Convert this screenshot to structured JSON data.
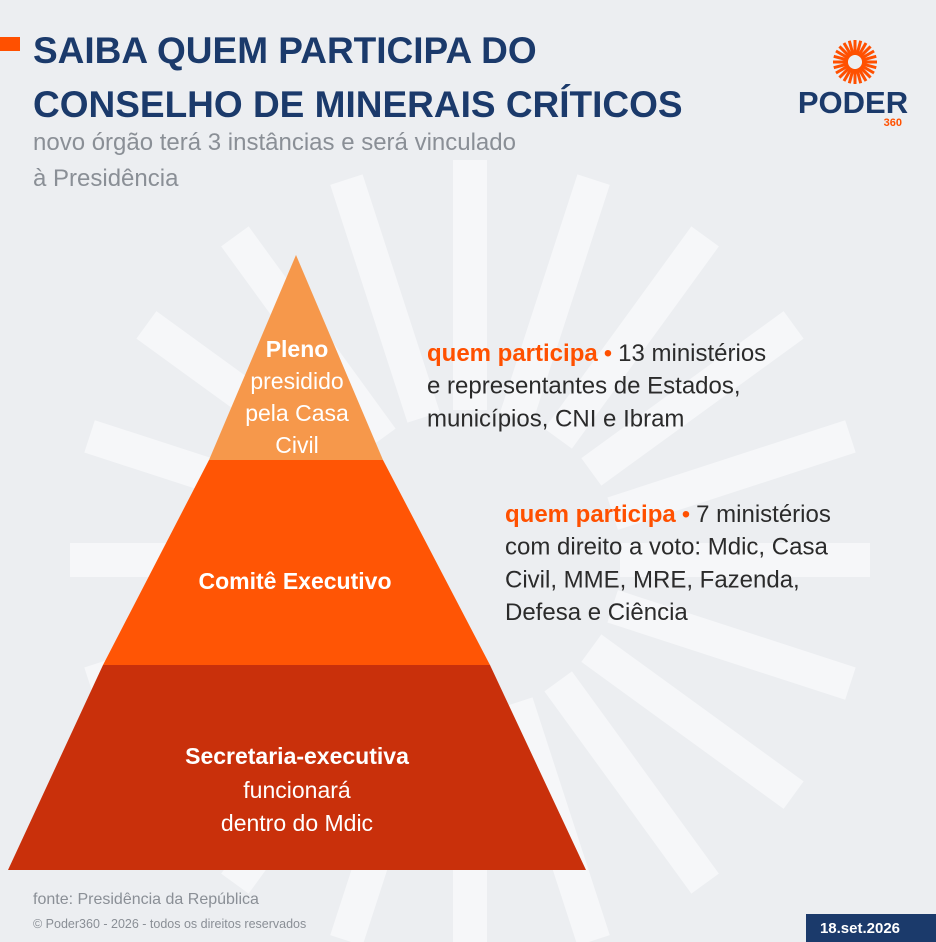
{
  "header": {
    "title_lines": [
      "SAIBA QUEM PARTICIPA DO",
      "CONSELHO DE MINERAIS CRÍTICOS"
    ],
    "subtitle_lines": [
      "novo órgão terá 3 instâncias e será vinculado",
      "à Presidência"
    ],
    "logo": {
      "name": "PODER",
      "number": "360"
    }
  },
  "pyramid": [
    {
      "title": "Pleno",
      "lines": [
        "presidido",
        "pela Casa",
        "Civil"
      ]
    },
    {
      "title": "Comitê Executivo",
      "lines": []
    },
    {
      "title": "Secretaria-executiva",
      "lines": [
        "funcionará",
        "dentro do Mdic"
      ]
    }
  ],
  "descriptions": [
    {
      "label": "quem participa",
      "separator": "•",
      "lines": [
        "13 ministérios",
        "e representantes de Estados,",
        "municípios, CNI e Ibram"
      ]
    },
    {
      "label": "quem participa",
      "separator": "•",
      "lines": [
        "7 ministérios",
        "com direito a voto: Mdic, Casa",
        "Civil, MME, MRE, Fazenda,",
        "Defesa e Ciência"
      ]
    }
  ],
  "footer": {
    "source": "fonte: Presidência da República",
    "copyright": "© Poder360 - 2026 - todos os direitos reservados",
    "date": "18.set.2026"
  }
}
